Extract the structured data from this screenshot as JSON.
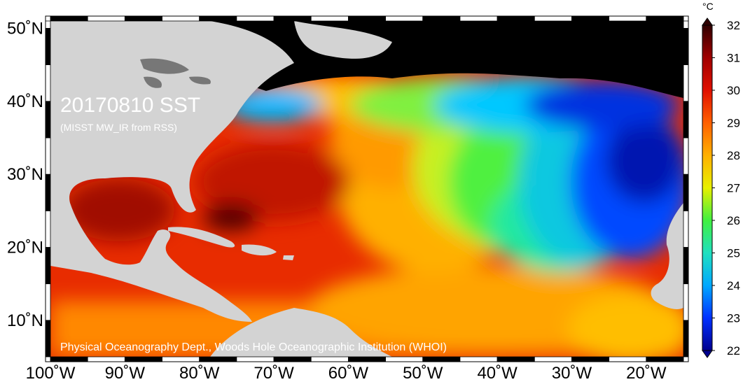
{
  "map": {
    "title": "20170810 SST",
    "subtitle": "(MISST MW_IR from RSS)",
    "credit": "Physical Oceanography Dept., Woods Hole Oceanographic Institution (WHOI)",
    "lon_range": [
      -100,
      -15
    ],
    "lat_range": [
      5,
      51
    ],
    "lon_ticks": [
      {
        "value": -100,
        "label": "100˚W"
      },
      {
        "value": -90,
        "label": "90˚W"
      },
      {
        "value": -80,
        "label": "80˚W"
      },
      {
        "value": -70,
        "label": "70˚W"
      },
      {
        "value": -60,
        "label": "60˚W"
      },
      {
        "value": -50,
        "label": "50˚W"
      },
      {
        "value": -40,
        "label": "40˚W"
      },
      {
        "value": -30,
        "label": "30˚W"
      },
      {
        "value": -20,
        "label": "20˚W"
      }
    ],
    "lat_ticks": [
      {
        "value": 50,
        "label": "50˚N"
      },
      {
        "value": 40,
        "label": "40˚N"
      },
      {
        "value": 30,
        "label": "30˚N"
      },
      {
        "value": 20,
        "label": "20˚N"
      },
      {
        "value": 10,
        "label": "10˚N"
      }
    ],
    "land_color": "#d3d3d3",
    "nodata_color": "#000000"
  },
  "colorbar": {
    "unit": "°C",
    "min": 22,
    "max": 32,
    "ticks": [
      "22",
      "23",
      "24",
      "25",
      "26",
      "27",
      "28",
      "29",
      "30",
      "31",
      "32"
    ],
    "stops": [
      "#00008f",
      "#0030ff",
      "#00a8ff",
      "#20e0c0",
      "#40f040",
      "#e8f000",
      "#ffb000",
      "#ff6000",
      "#e01000",
      "#a00000",
      "#300000"
    ]
  }
}
